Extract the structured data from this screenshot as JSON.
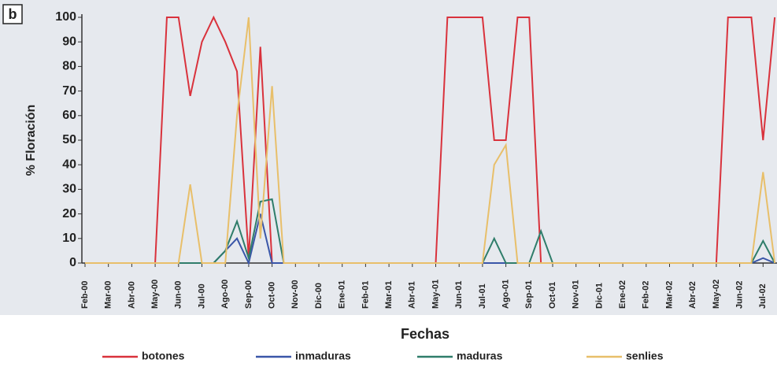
{
  "chart_data": {
    "type": "line",
    "panel_label": "b",
    "y_label": "% Floración",
    "x_label": "Fechas",
    "categories": [
      "Feb-00",
      null,
      "Mar-00",
      null,
      "Abr-00",
      null,
      "May-00",
      null,
      "Jun-00",
      null,
      "Jul-00",
      null,
      "Ago-00",
      null,
      "Sep-00",
      null,
      "Oct-00",
      null,
      "Nov-00",
      null,
      "Dic-00",
      null,
      "Ene-01",
      null,
      "Feb-01",
      null,
      "Mar-01",
      null,
      "Abr-01",
      null,
      "May-01",
      null,
      "Jun-01",
      null,
      "Jul-01",
      null,
      "Ago-01",
      null,
      "Sep-01",
      null,
      "Oct-01",
      null,
      "Nov-01",
      null,
      "Dic-01",
      null,
      "Ene-02",
      null,
      "Feb-02",
      null,
      "Mar-02",
      null,
      "Abr-02",
      null,
      "May-02",
      null,
      "Jun-02",
      null,
      "Jul-02",
      null
    ],
    "series": [
      {
        "name": "botones",
        "color": "#d9323c",
        "values": [
          0,
          0,
          0,
          0,
          0,
          0,
          0,
          100,
          100,
          68,
          90,
          100,
          90,
          78,
          2,
          88,
          0,
          0,
          0,
          0,
          0,
          0,
          0,
          0,
          0,
          0,
          0,
          0,
          0,
          0,
          0,
          100,
          100,
          100,
          100,
          50,
          50,
          100,
          100,
          0,
          0,
          0,
          0,
          0,
          0,
          0,
          0,
          0,
          0,
          0,
          0,
          0,
          0,
          0,
          0,
          100,
          100,
          100,
          50,
          100
        ]
      },
      {
        "name": "inmaduras",
        "color": "#3a56a8",
        "values": [
          0,
          0,
          0,
          0,
          0,
          0,
          0,
          0,
          0,
          0,
          0,
          0,
          5,
          10,
          0,
          20,
          0,
          0,
          0,
          0,
          0,
          0,
          0,
          0,
          0,
          0,
          0,
          0,
          0,
          0,
          0,
          0,
          0,
          0,
          0,
          0,
          0,
          0,
          0,
          0,
          0,
          0,
          0,
          0,
          0,
          0,
          0,
          0,
          0,
          0,
          0,
          0,
          0,
          0,
          0,
          0,
          0,
          0,
          2,
          0
        ]
      },
      {
        "name": "maduras",
        "color": "#2f7d6a",
        "values": [
          0,
          0,
          0,
          0,
          0,
          0,
          0,
          0,
          0,
          0,
          0,
          0,
          5,
          17,
          2,
          25,
          26,
          0,
          0,
          0,
          0,
          0,
          0,
          0,
          0,
          0,
          0,
          0,
          0,
          0,
          0,
          0,
          0,
          0,
          0,
          10,
          0,
          0,
          0,
          13,
          0,
          0,
          0,
          0,
          0,
          0,
          0,
          0,
          0,
          0,
          0,
          0,
          0,
          0,
          0,
          0,
          0,
          0,
          9,
          0
        ]
      },
      {
        "name": "senlies",
        "color": "#e8bf6a",
        "values": [
          0,
          0,
          0,
          0,
          0,
          0,
          0,
          0,
          0,
          32,
          0,
          0,
          0,
          60,
          100,
          10,
          72,
          0,
          0,
          0,
          0,
          0,
          0,
          0,
          0,
          0,
          0,
          0,
          0,
          0,
          0,
          0,
          0,
          0,
          0,
          40,
          48,
          0,
          0,
          0,
          0,
          0,
          0,
          0,
          0,
          0,
          0,
          0,
          0,
          0,
          0,
          0,
          0,
          0,
          0,
          0,
          0,
          0,
          37,
          0
        ]
      }
    ],
    "ylim": [
      0,
      100
    ],
    "yticks": [
      0,
      10,
      20,
      30,
      40,
      50,
      60,
      70,
      80,
      90,
      100
    ],
    "legend": "bottom"
  }
}
